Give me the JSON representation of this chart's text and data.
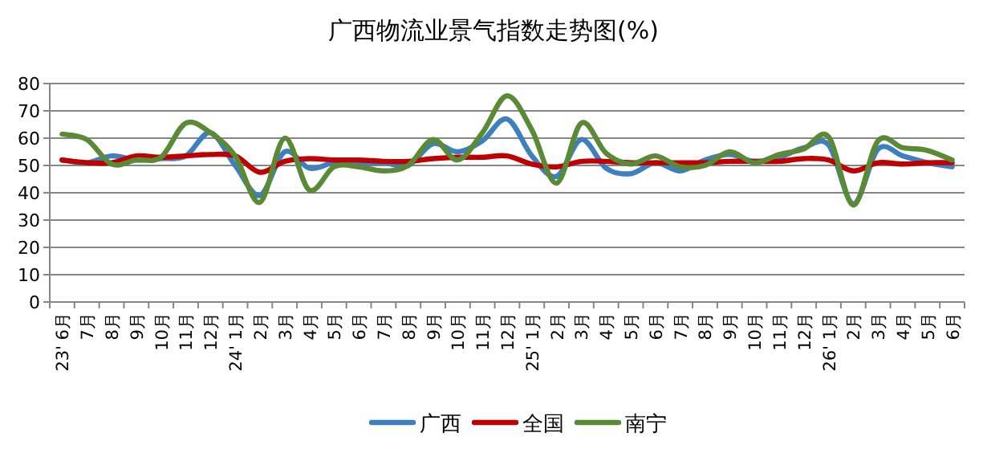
{
  "chart_data": {
    "type": "line",
    "title": "广西物流业景气指数走势图(%)",
    "categories": [
      "23' 6月",
      "7月",
      "8月",
      "9月",
      "10月",
      "11月",
      "12月",
      "24' 1月",
      "2月",
      "3月",
      "4月",
      "5月",
      "6月",
      "7月",
      "8月",
      "9月",
      "10月",
      "11月",
      "12月",
      "25' 1月",
      "2月",
      "3月",
      "4月",
      "5月",
      "6月",
      "7月",
      "8月",
      "9月",
      "10月",
      "11月",
      "12月",
      "26' 1月",
      "2月",
      "3月",
      "4月",
      "5月",
      "6月"
    ],
    "series": [
      {
        "name": "广西",
        "color": "#3e7fc0",
        "values": [
          52,
          51,
          53.5,
          52,
          52.5,
          53.5,
          62,
          50,
          39,
          55,
          49,
          51,
          50.5,
          51,
          50,
          58,
          55,
          59,
          67,
          53.5,
          46,
          59.5,
          49,
          47,
          51,
          48,
          52,
          54,
          51.5,
          53,
          56.5,
          57.5,
          36,
          56,
          53.5,
          51,
          49.5
        ]
      },
      {
        "name": "全国",
        "color": "#c00000",
        "values": [
          52,
          51,
          51,
          53.5,
          53,
          53.5,
          54,
          53.5,
          47.5,
          51.5,
          52.5,
          52,
          52,
          51.5,
          51.5,
          52.5,
          53,
          53,
          53.5,
          50.5,
          49.5,
          51.5,
          51.5,
          51,
          51,
          51,
          51,
          51.5,
          51.5,
          51.5,
          52.5,
          52,
          48,
          51,
          50.5,
          51,
          51
        ]
      },
      {
        "name": "南宁",
        "color": "#5b8a36",
        "values": [
          61.5,
          59.5,
          50.5,
          52,
          53,
          65.5,
          62,
          53.5,
          36.5,
          60,
          41,
          49.5,
          49.5,
          48,
          50,
          59.5,
          52,
          62,
          75.5,
          63,
          43.5,
          65.5,
          54.5,
          50.5,
          53.5,
          49.5,
          50,
          55,
          51,
          54,
          56,
          60.5,
          35.5,
          59,
          56.5,
          55.5,
          52
        ]
      }
    ],
    "ylim": [
      0,
      80
    ],
    "yticks": [
      0,
      10,
      20,
      30,
      40,
      50,
      60,
      70,
      80
    ],
    "grid": "y",
    "legend": "bottom"
  }
}
